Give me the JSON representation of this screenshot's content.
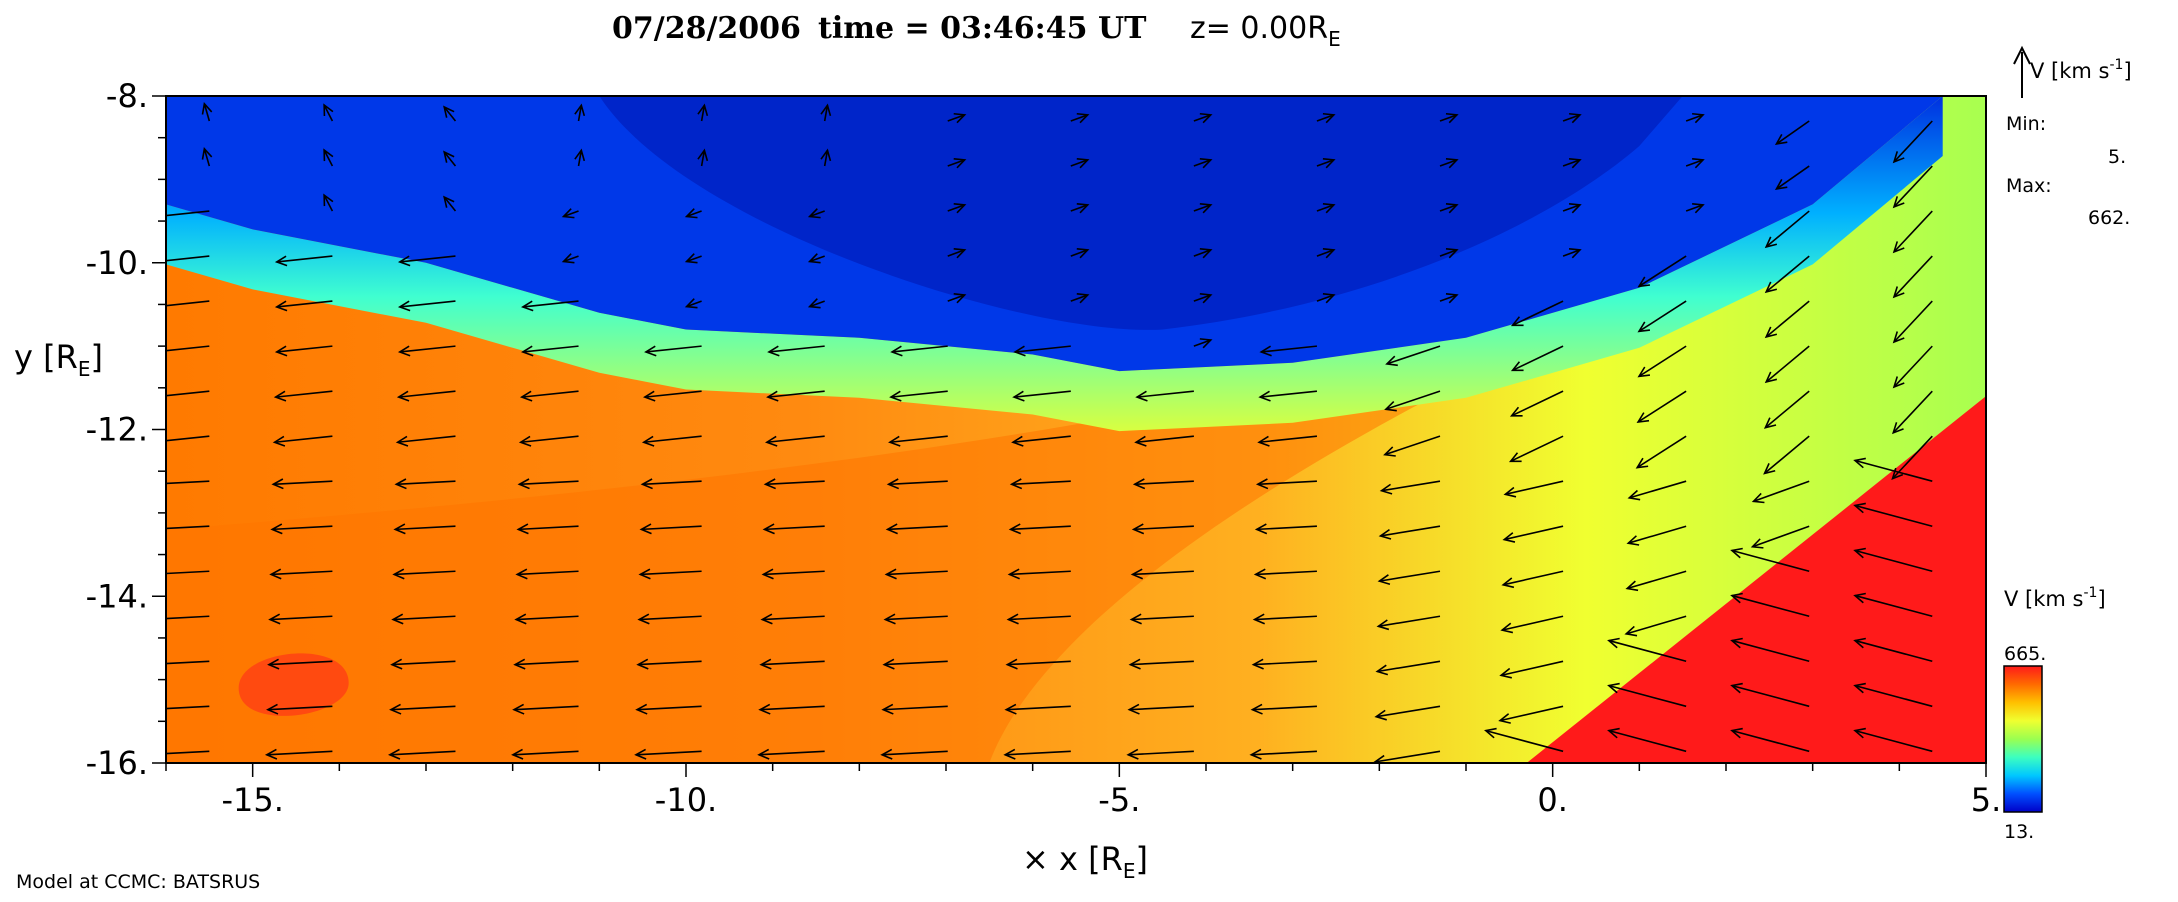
{
  "title": {
    "date": "07/28/2006",
    "time_label": "time = 03:46:45 UT",
    "z_label": "z= 0.00R",
    "z_sub": "E"
  },
  "chart_data": {
    "type": "heatmap",
    "overlay": "vector-field",
    "xlabel": "x [R",
    "xlabel_sub": "E",
    "xlabel_close": "]",
    "ylabel": "y [R",
    "ylabel_sub": "E",
    "ylabel_close": "]",
    "xlim": [
      -16,
      5
    ],
    "ylim": [
      -16,
      -8
    ],
    "x_ticks": [
      -15,
      -10,
      -5,
      0,
      5
    ],
    "x_tick_labels": [
      "-15.",
      "-10.",
      "-5.",
      "0.",
      "5."
    ],
    "y_ticks": [
      -8,
      -10,
      -12,
      -14,
      -16
    ],
    "y_tick_labels": [
      "-8.",
      "-10.",
      "-12.",
      "-14.",
      "-16."
    ],
    "vector_legend": {
      "label": "V [km s",
      "label_sup": "-1",
      "label_close": "]",
      "min_label": "Min:",
      "min_value": "5.",
      "max_label": "Max:",
      "max_value": "662."
    },
    "colorbar": {
      "label": "V [km s",
      "label_sup": "-1",
      "label_close": "]",
      "max_label": "665.",
      "min_label": "13.",
      "max": 665,
      "min": 13,
      "colors": [
        "#0000c8",
        "#0050ff",
        "#00c8ff",
        "#3cffc0",
        "#9bff50",
        "#f0ff30",
        "#ffc000",
        "#ff6a00",
        "#ff1a1a"
      ]
    },
    "regions": {
      "magnetopause_y": [
        [
          -16,
          -9.3
        ],
        [
          -15,
          -9.6
        ],
        [
          -14,
          -9.8
        ],
        [
          -13,
          -10.0
        ],
        [
          -12,
          -10.3
        ],
        [
          -11,
          -10.6
        ],
        [
          -10,
          -10.8
        ],
        [
          -8,
          -10.9
        ],
        [
          -6,
          -11.1
        ],
        [
          -5,
          -11.3
        ],
        [
          -3,
          -11.2
        ],
        [
          -1,
          -10.9
        ],
        [
          1,
          -10.3
        ],
        [
          3,
          -9.3
        ],
        [
          4.5,
          -8
        ]
      ],
      "bow_shock_line": [
        [
          -0.3,
          -16
        ],
        [
          5,
          -11.6
        ]
      ]
    }
  },
  "footer": {
    "credit": "Model at CCMC: BATSRUS"
  }
}
